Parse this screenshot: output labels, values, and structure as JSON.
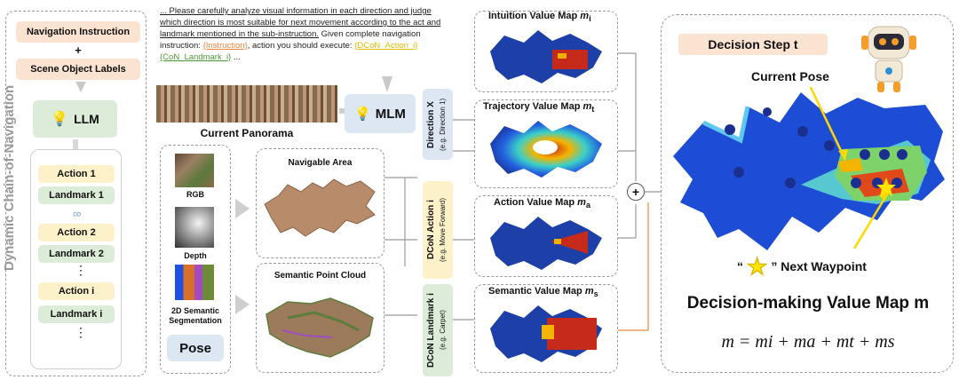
{
  "left_panel": {
    "vertical_title": "Dynamic Chain-of-Navigation",
    "nav_instruction": "Navigation Instruction",
    "plus": "+",
    "scene_labels": "Scene Object Labels",
    "llm": "LLM",
    "chain": [
      {
        "action": "Action 1",
        "landmark": "Landmark 1"
      },
      {
        "action": "Action 2",
        "landmark": "Landmark 2"
      },
      {
        "action": "Action i",
        "landmark": "Landmark i"
      }
    ],
    "dots": "⋮"
  },
  "prompt": {
    "text_1": "... Please carefully analyze visual information in each direction and judge which direction is most suitable for next movement according to the act and landmark mentioned in the sub-instruction.",
    "text_2": " Given complete navigation instruction: ",
    "instruction_tag": "{Instruction}",
    "text_3": ", action you should execute: ",
    "action_tag": "{DCoN_Action_i}",
    "landmark_tag": "{CoN_Landmark_i}",
    "text_4": " ..."
  },
  "center": {
    "panorama_label": "Current Panorama",
    "mlm": "MLM",
    "inputs": [
      "RGB",
      "Depth",
      "2D Semantic Segmentation"
    ],
    "pose": "Pose",
    "navigable_area": "Navigable Area",
    "semantic_point_cloud": "Semantic Point Cloud",
    "direction_tag": "Direction X",
    "direction_eg": "(e.g. Direction 1)",
    "action_tag": "DCoN Action i",
    "action_eg": "(e.g. Move Forward)",
    "landmark_tag": "DCoN Landmark i",
    "landmark_eg": "(e.g. Carpet)"
  },
  "maps": [
    {
      "name": "Intuition Value Map",
      "sym": "m",
      "sub": "i"
    },
    {
      "name": "Trajectory Value Map",
      "sym": "m",
      "sub": "t"
    },
    {
      "name": "Action Value Map",
      "sym": "m",
      "sub": "a"
    },
    {
      "name": "Semantic Value Map",
      "sym": "m",
      "sub": "s"
    }
  ],
  "plus_circle": "+",
  "right_panel": {
    "step": "Decision Step t",
    "current_pose": "Current Pose",
    "waypoint_open": "“",
    "waypoint_close": "” Next Waypoint",
    "title": "Decision-making Value Map m",
    "equation": "m = mi + ma + mt + ms"
  },
  "colors": {
    "map_blue": "#1d3fa8",
    "map_red": "#c62a1a",
    "accent_orange": "#fbe3d2",
    "accent_green": "#dcecd8",
    "accent_yellow": "#fdf1c9",
    "star": "#ffe600"
  }
}
